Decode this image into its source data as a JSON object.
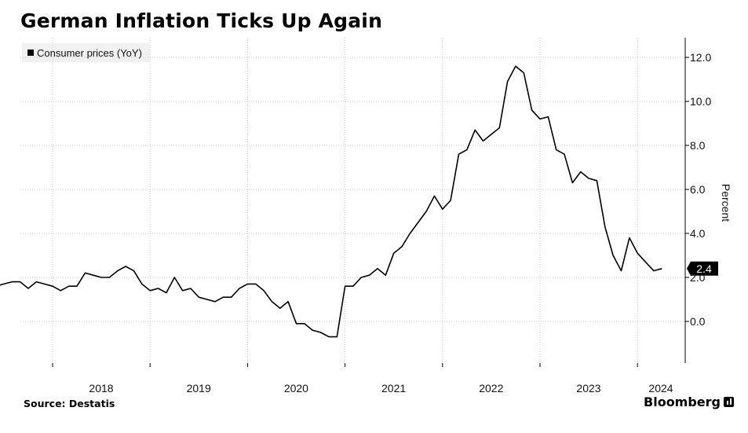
{
  "header": {
    "title": "German Inflation Ticks Up Again"
  },
  "footer": {
    "source": "Source: Destatis",
    "brand": "Bloomberg"
  },
  "colors": {
    "line": "#000000",
    "grid": "#c8c8c8",
    "legend_bg": "#f1f1f1",
    "last_label_bg": "#000000"
  },
  "chart_data": {
    "type": "line",
    "title": "German Inflation Ticks Up Again",
    "ylabel": "Percent",
    "xlabel": "",
    "ylim": [
      -2,
      13
    ],
    "yticks": [
      0,
      2,
      4,
      6,
      8,
      10,
      12
    ],
    "ytick_labels": [
      "0.0",
      "2.0",
      "4.0",
      "6.0",
      "8.0",
      "10.0",
      "12.0"
    ],
    "y_axis_side": "right",
    "xticks": [
      "2018",
      "2019",
      "2020",
      "2021",
      "2022",
      "2023",
      "2024"
    ],
    "grid": true,
    "legend_position": "top-left",
    "last_value_label": "2.4",
    "series": [
      {
        "name": "Consumer prices (YoY)",
        "x": [
          "2017-05",
          "2017-06",
          "2017-07",
          "2017-08",
          "2017-09",
          "2017-10",
          "2017-11",
          "2017-12",
          "2018-01",
          "2018-02",
          "2018-03",
          "2018-04",
          "2018-05",
          "2018-06",
          "2018-07",
          "2018-08",
          "2018-09",
          "2018-10",
          "2018-11",
          "2018-12",
          "2019-01",
          "2019-02",
          "2019-03",
          "2019-04",
          "2019-05",
          "2019-06",
          "2019-07",
          "2019-08",
          "2019-09",
          "2019-10",
          "2019-11",
          "2019-12",
          "2020-01",
          "2020-02",
          "2020-03",
          "2020-04",
          "2020-05",
          "2020-06",
          "2020-07",
          "2020-08",
          "2020-09",
          "2020-10",
          "2020-11",
          "2020-12",
          "2021-01",
          "2021-02",
          "2021-03",
          "2021-04",
          "2021-05",
          "2021-06",
          "2021-07",
          "2021-08",
          "2021-09",
          "2021-10",
          "2021-11",
          "2021-12",
          "2022-01",
          "2022-02",
          "2022-03",
          "2022-04",
          "2022-05",
          "2022-06",
          "2022-07",
          "2022-08",
          "2022-09",
          "2022-10",
          "2022-11",
          "2022-12",
          "2023-01",
          "2023-02",
          "2023-03",
          "2023-04",
          "2023-05",
          "2023-06",
          "2023-07",
          "2023-08",
          "2023-09",
          "2023-10",
          "2023-11",
          "2023-12",
          "2024-01",
          "2024-02",
          "2024-03",
          "2024-04"
        ],
        "values": [
          1.5,
          1.6,
          1.7,
          1.8,
          1.8,
          1.5,
          1.8,
          1.7,
          1.6,
          1.4,
          1.6,
          1.6,
          2.2,
          2.1,
          2.0,
          2.0,
          2.3,
          2.5,
          2.3,
          1.7,
          1.4,
          1.5,
          1.3,
          2.0,
          1.4,
          1.5,
          1.1,
          1.0,
          0.9,
          1.1,
          1.1,
          1.5,
          1.7,
          1.7,
          1.4,
          0.9,
          0.6,
          0.9,
          -0.1,
          -0.1,
          -0.4,
          -0.5,
          -0.7,
          -0.7,
          1.6,
          1.6,
          2.0,
          2.1,
          2.4,
          2.1,
          3.1,
          3.4,
          4.0,
          4.5,
          5.0,
          5.7,
          5.1,
          5.5,
          7.6,
          7.8,
          8.7,
          8.2,
          8.5,
          8.8,
          10.9,
          11.6,
          11.3,
          9.6,
          9.2,
          9.3,
          7.8,
          7.6,
          6.3,
          6.8,
          6.5,
          6.4,
          4.3,
          3.0,
          2.3,
          3.8,
          3.1,
          2.7,
          2.3,
          2.4
        ]
      }
    ]
  }
}
